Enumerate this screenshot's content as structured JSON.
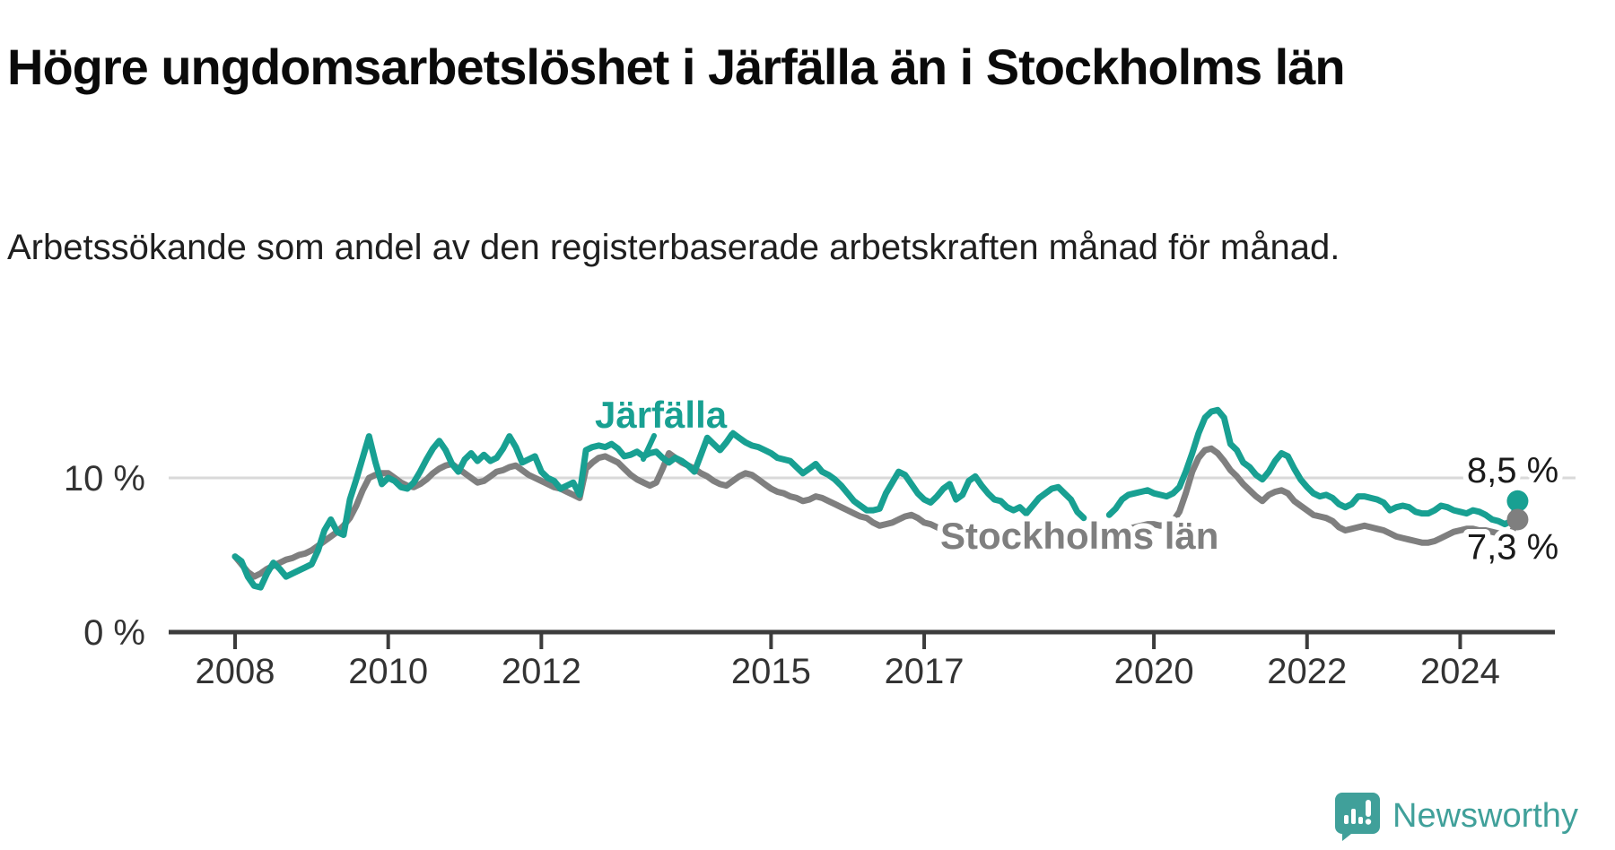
{
  "title": "Högre ungdomsarbetslöshet i Järfälla än i Stockholms län",
  "subtitle": "Arbetssökande som andel av den registerbaserade arbetskraften månad för månad.",
  "footer": {
    "brand": "Newsworthy",
    "logo_icon": "bar-chart-speech-bubble-icon",
    "brand_color": "#40a09a"
  },
  "chart_data": {
    "type": "line",
    "title": "Högre ungdomsarbetslöshet i Järfälla än i Stockholms län",
    "subtitle": "Arbetssökande som andel av den registerbaserade arbetskraften månad för månad.",
    "unit": "%",
    "x_start_year": 2008,
    "x_start_month": 1,
    "x_step_months": 1,
    "x_ticks": [
      2008,
      2010,
      2012,
      2015,
      2017,
      2020,
      2022,
      2024
    ],
    "y_ticks": [
      {
        "value": 0,
        "label": "0 %"
      },
      {
        "value": 10,
        "label": "10 %"
      }
    ],
    "ylim": [
      0,
      15.5
    ],
    "grid": "horizontal-10-only",
    "legend_position": "inline-labels",
    "colors": {
      "jarfalla": "#18a092",
      "stockholm": "#7f7f7f",
      "gridline": "#d9d9d9",
      "axis": "#3c3c3c",
      "tick_text": "#333333",
      "value_text": "#1a1a1a"
    },
    "series": [
      {
        "name": "Järfälla",
        "color": "#18a092",
        "end_label": "8,5 %",
        "end_value": 8.5,
        "values": [
          4.9,
          4.6,
          3.6,
          3.0,
          2.9,
          3.8,
          4.5,
          4.1,
          3.6,
          3.8,
          4.0,
          4.2,
          4.4,
          5.3,
          6.6,
          7.3,
          6.5,
          6.3,
          8.6,
          9.9,
          11.3,
          12.7,
          11.0,
          9.6,
          10.0,
          9.8,
          9.4,
          9.3,
          9.7,
          10.4,
          11.2,
          11.9,
          12.4,
          11.8,
          10.9,
          10.4,
          11.2,
          11.6,
          11.1,
          11.5,
          11.1,
          11.3,
          11.9,
          12.7,
          12.0,
          11.0,
          11.2,
          11.4,
          10.4,
          10.0,
          9.8,
          9.3,
          9.5,
          9.7,
          8.9,
          11.8,
          12.0,
          12.1,
          12.0,
          12.2,
          11.9,
          11.4,
          11.5,
          11.7,
          11.4,
          11.6,
          11.7,
          11.3,
          11.0,
          11.3,
          11.1,
          10.8,
          10.4,
          11.5,
          12.6,
          12.2,
          11.8,
          12.3,
          12.9,
          12.6,
          12.3,
          12.1,
          12.0,
          11.8,
          11.6,
          11.3,
          11.2,
          11.1,
          10.7,
          10.3,
          10.6,
          10.9,
          10.4,
          10.2,
          9.9,
          9.5,
          9.0,
          8.5,
          8.2,
          7.9,
          7.9,
          8.0,
          9.0,
          9.7,
          10.4,
          10.2,
          9.6,
          9.0,
          8.6,
          8.4,
          8.8,
          9.3,
          9.6,
          8.6,
          8.9,
          9.8,
          10.1,
          9.5,
          9.0,
          8.6,
          8.5,
          8.1,
          7.9,
          8.1,
          7.7,
          8.2,
          8.7,
          9.0,
          9.3,
          9.4,
          9.0,
          8.6,
          7.8,
          7.4,
          null,
          null,
          null,
          7.6,
          8.0,
          8.6,
          8.9,
          9.0,
          9.1,
          9.2,
          9.0,
          8.9,
          8.8,
          9.0,
          9.4,
          10.4,
          11.6,
          12.9,
          13.9,
          14.3,
          14.4,
          13.9,
          12.2,
          11.8,
          11.0,
          10.7,
          10.2,
          9.9,
          10.4,
          11.1,
          11.6,
          11.4,
          10.6,
          9.9,
          9.4,
          9.0,
          8.8,
          8.9,
          8.7,
          8.3,
          8.1,
          8.3,
          8.8,
          8.8,
          8.7,
          8.6,
          8.4,
          7.9,
          8.1,
          8.2,
          8.1,
          7.8,
          7.7,
          7.7,
          7.9,
          8.2,
          8.1,
          7.9,
          7.8,
          7.7,
          7.9,
          7.8,
          7.6,
          7.3,
          7.2,
          7.0,
          7.2,
          8.5
        ]
      },
      {
        "name": "Stockholms län",
        "color": "#7f7f7f",
        "end_label": "7,3 %",
        "end_value": 7.3,
        "values": [
          4.9,
          4.4,
          3.9,
          3.6,
          3.8,
          4.1,
          4.3,
          4.5,
          4.7,
          4.8,
          5.0,
          5.1,
          5.3,
          5.6,
          5.9,
          6.2,
          6.5,
          6.9,
          7.4,
          8.2,
          9.2,
          10.0,
          10.2,
          10.3,
          10.3,
          10.0,
          9.7,
          9.5,
          9.4,
          9.6,
          9.9,
          10.3,
          10.6,
          10.8,
          10.9,
          10.6,
          10.3,
          10.0,
          9.7,
          9.8,
          10.1,
          10.4,
          10.5,
          10.7,
          10.8,
          10.5,
          10.2,
          10.0,
          9.8,
          9.6,
          9.4,
          9.3,
          9.1,
          8.9,
          8.7,
          10.6,
          11.0,
          11.3,
          11.4,
          11.2,
          11.0,
          10.6,
          10.2,
          9.9,
          9.7,
          9.5,
          9.7,
          10.6,
          11.6,
          11.3,
          11.0,
          10.8,
          10.6,
          10.3,
          10.1,
          9.8,
          9.6,
          9.5,
          9.8,
          10.1,
          10.3,
          10.2,
          9.9,
          9.6,
          9.3,
          9.1,
          9.0,
          8.8,
          8.7,
          8.5,
          8.6,
          8.8,
          8.7,
          8.5,
          8.3,
          8.1,
          7.9,
          7.7,
          7.5,
          7.4,
          7.1,
          6.9,
          7.0,
          7.1,
          7.3,
          7.5,
          7.6,
          7.4,
          7.1,
          7.0,
          6.8,
          6.6,
          6.5,
          6.4,
          6.5,
          6.7,
          6.8,
          6.7,
          6.5,
          6.4,
          6.3,
          6.2,
          6.1,
          6.0,
          6.0,
          6.1,
          6.3,
          6.5,
          6.7,
          6.8,
          6.6,
          6.4,
          6.2,
          6.1,
          6.1,
          6.2,
          6.3,
          6.4,
          6.5,
          6.6,
          6.7,
          6.8,
          6.9,
          7.0,
          7.0,
          6.9,
          7.0,
          7.2,
          7.8,
          9.0,
          10.4,
          11.3,
          11.8,
          11.9,
          11.6,
          11.1,
          10.5,
          10.1,
          9.6,
          9.2,
          8.8,
          8.5,
          8.9,
          9.1,
          9.2,
          9.0,
          8.5,
          8.2,
          7.9,
          7.6,
          7.5,
          7.4,
          7.2,
          6.8,
          6.6,
          6.7,
          6.8,
          6.9,
          6.8,
          6.7,
          6.6,
          6.4,
          6.2,
          6.1,
          6.0,
          5.9,
          5.8,
          5.8,
          5.9,
          6.1,
          6.3,
          6.5,
          6.6,
          6.7,
          6.7,
          6.6,
          6.6,
          6.5,
          6.4,
          6.2,
          6.4,
          7.3
        ]
      }
    ],
    "annotations": [
      {
        "text": "Järfälla",
        "series": "Järfälla",
        "color": "#18a092"
      },
      {
        "text": "Stockholms län",
        "series": "Stockholms län",
        "color": "#7f7f7f"
      }
    ]
  }
}
